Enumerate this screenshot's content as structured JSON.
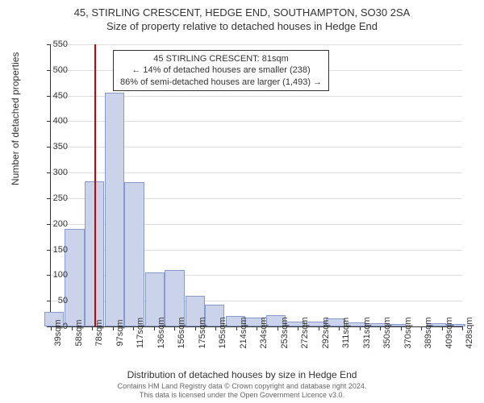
{
  "chart": {
    "type": "histogram",
    "title_main": "45, STIRLING CRESCENT, HEDGE END, SOUTHAMPTON, SO30 2SA",
    "title_sub": "Size of property relative to detached houses in Hedge End",
    "x_axis_label": "Distribution of detached houses by size in Hedge End",
    "y_axis_label": "Number of detached properties",
    "background_color": "#ffffff",
    "grid_color": "#dddddd",
    "axis_color": "#333333",
    "bar_fill": "#cad3ea",
    "bar_border": "#8899cc",
    "marker_color": "#cc0000",
    "marker_value": 81,
    "y_ticks": [
      0,
      50,
      100,
      150,
      200,
      250,
      300,
      350,
      400,
      450,
      500,
      550
    ],
    "y_max": 550,
    "x_tick_labels": [
      "39sqm",
      "58sqm",
      "78sqm",
      "97sqm",
      "117sqm",
      "136sqm",
      "156sqm",
      "175sqm",
      "195sqm",
      "214sqm",
      "234sqm",
      "253sqm",
      "272sqm",
      "292sqm",
      "311sqm",
      "331sqm",
      "350sqm",
      "370sqm",
      "389sqm",
      "409sqm",
      "428sqm"
    ],
    "x_min": 39,
    "x_max": 438,
    "bars": [
      {
        "x": 42,
        "count": 28
      },
      {
        "x": 62,
        "count": 190
      },
      {
        "x": 81,
        "count": 283
      },
      {
        "x": 101,
        "count": 455
      },
      {
        "x": 120,
        "count": 282
      },
      {
        "x": 140,
        "count": 105
      },
      {
        "x": 159,
        "count": 110
      },
      {
        "x": 179,
        "count": 60
      },
      {
        "x": 198,
        "count": 42
      },
      {
        "x": 218,
        "count": 20
      },
      {
        "x": 237,
        "count": 18
      },
      {
        "x": 257,
        "count": 22
      },
      {
        "x": 276,
        "count": 10
      },
      {
        "x": 296,
        "count": 10
      },
      {
        "x": 315,
        "count": 15
      },
      {
        "x": 335,
        "count": 8
      },
      {
        "x": 354,
        "count": 6
      },
      {
        "x": 374,
        "count": 4
      },
      {
        "x": 393,
        "count": 0
      },
      {
        "x": 413,
        "count": 6
      },
      {
        "x": 432,
        "count": 4
      }
    ],
    "annotation": {
      "line1": "45 STIRLING CRESCENT: 81sqm",
      "line2": "← 14% of detached houses are smaller (238)",
      "line3": "86% of semi-detached houses are larger (1,493) →"
    },
    "footer": {
      "line1": "Contains HM Land Registry data © Crown copyright and database right 2024.",
      "line2": "This data is licensed under the Open Government Licence v3.0."
    },
    "title_fontsize": 13,
    "label_fontsize": 12,
    "tick_fontsize": 11,
    "annotation_fontsize": 11,
    "footer_fontsize": 9
  }
}
